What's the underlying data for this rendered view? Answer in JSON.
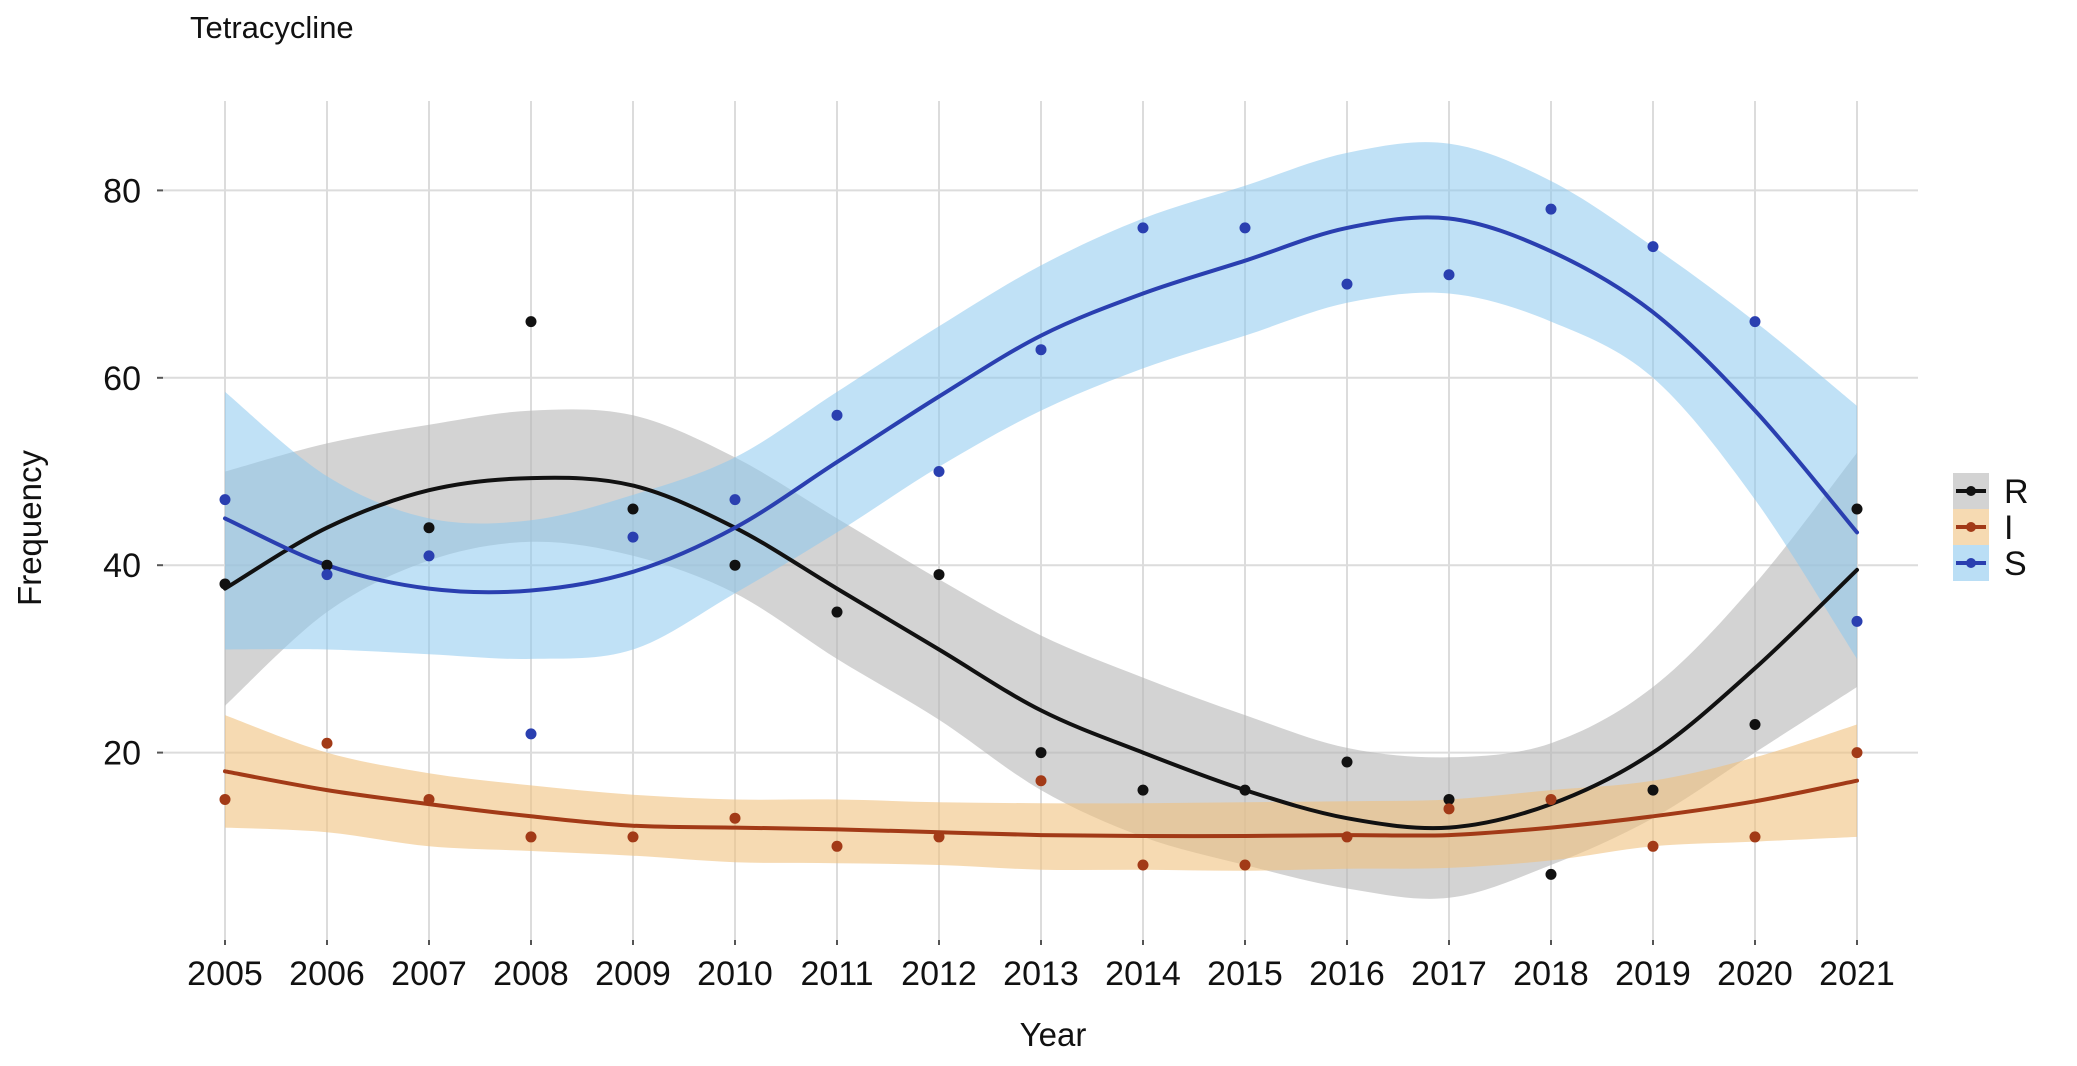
{
  "chart_data": {
    "type": "scatter",
    "title": "Tetracycline",
    "xlabel": "Year",
    "ylabel": "Frequency",
    "x": [
      2005,
      2006,
      2007,
      2008,
      2009,
      2010,
      2011,
      2012,
      2013,
      2014,
      2015,
      2016,
      2017,
      2018,
      2019,
      2020,
      2021
    ],
    "x_tick_labels": [
      "2005",
      "2006",
      "2007",
      "2008",
      "2009",
      "2010",
      "2011",
      "2012",
      "2013",
      "2014",
      "2015",
      "2016",
      "2017",
      "2018",
      "2019",
      "2020",
      "2021"
    ],
    "y_ticks": [
      20,
      40,
      60,
      80
    ],
    "y_tick_labels": [
      "20",
      "40",
      "60",
      "80"
    ],
    "xlim": [
      2004.2,
      2021.8
    ],
    "ylim": [
      0,
      88.7
    ],
    "grid": true,
    "legend_position": "right",
    "smoother": "loess with confidence band",
    "series": [
      {
        "name": "R",
        "color": "#111111",
        "band_color": "#b5b5b5",
        "values": [
          38,
          40,
          44,
          66,
          46,
          40,
          35,
          39,
          20,
          16,
          16,
          19,
          15,
          7,
          16,
          23,
          46
        ],
        "fit": [
          37.5,
          44,
          48,
          49.3,
          48.5,
          44,
          37.5,
          31,
          24.5,
          20,
          16,
          13,
          12,
          14.5,
          20,
          29,
          39.5
        ],
        "fit_lower": [
          25,
          35,
          40.5,
          42.5,
          41,
          37,
          30,
          23.5,
          16,
          11,
          8,
          5.5,
          4.5,
          8,
          13,
          20,
          27
        ],
        "fit_upper": [
          50,
          53,
          55,
          56.5,
          56,
          51.5,
          45,
          38.5,
          32.5,
          28,
          24,
          20.5,
          19.5,
          21,
          27,
          38,
          52
        ]
      },
      {
        "name": "I",
        "color": "#a23a17",
        "band_color": "#f0c27f",
        "values": [
          15,
          21,
          15,
          11,
          11,
          13,
          10,
          11,
          17,
          8,
          8,
          11,
          14,
          15,
          10,
          11,
          20
        ],
        "fit": [
          18,
          16,
          14.5,
          13.2,
          12.2,
          12,
          11.8,
          11.5,
          11.2,
          11.1,
          11.1,
          11.2,
          11.2,
          12,
          13.2,
          14.8,
          17
        ],
        "fit_lower": [
          12,
          11.5,
          10,
          9.5,
          9,
          8.3,
          8.2,
          8,
          7.5,
          7.5,
          7.4,
          7.6,
          7.7,
          8.5,
          10,
          10.5,
          11
        ],
        "fit_upper": [
          24,
          20,
          17.8,
          16.5,
          15.5,
          15,
          15,
          14.7,
          14.6,
          14.6,
          14.7,
          14.8,
          15,
          16,
          17,
          19.5,
          23
        ]
      },
      {
        "name": "S",
        "color": "#2a3fb0",
        "band_color": "#8cc8ee",
        "values": [
          47,
          39,
          41,
          22,
          43,
          47,
          56,
          50,
          63,
          76,
          76,
          70,
          71,
          78,
          74,
          66,
          34
        ],
        "fit": [
          45,
          40,
          37.5,
          37.3,
          39.3,
          44,
          51,
          58,
          64.5,
          69,
          72.5,
          76,
          77,
          73.5,
          67,
          56.5,
          43.5
        ],
        "fit_lower": [
          31,
          31,
          30.5,
          30,
          31,
          37,
          43.5,
          50.5,
          56.5,
          61,
          64.5,
          68,
          69,
          66,
          60,
          47,
          30
        ],
        "fit_upper": [
          58.5,
          49.5,
          45,
          44.8,
          47.5,
          51.5,
          58.5,
          65.5,
          72,
          77,
          80.5,
          84,
          85,
          81,
          74,
          66,
          57
        ]
      }
    ]
  }
}
